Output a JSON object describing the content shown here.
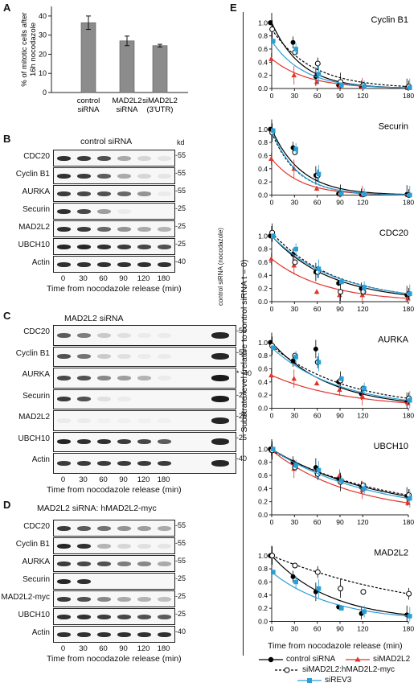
{
  "panels": {
    "A": "A",
    "B": "B",
    "C": "C",
    "D": "D",
    "E": "E"
  },
  "panelA": {
    "ylabel": "% of mitotic cells after 16h nocodazole",
    "yticks": [
      "0",
      "10",
      "20",
      "30",
      "40"
    ],
    "categories": [
      "control siRNA",
      "MAD2L2 siRNA",
      "siMAD2L2 (3'UTR)"
    ],
    "values": [
      36.5,
      27,
      24.5
    ],
    "errors": [
      3.5,
      2.5,
      0.7
    ],
    "ylim": [
      0,
      45
    ],
    "bar_color": "#8c8c8c"
  },
  "panelB": {
    "title": "control siRNA",
    "kd": "kd",
    "rows": [
      {
        "label": "CDC20",
        "kd": "-55",
        "bands": [
          0.9,
          0.85,
          0.75,
          0.35,
          0.15,
          0.08
        ]
      },
      {
        "label": "Cyclin B1",
        "kd": "-55",
        "bands": [
          0.9,
          0.85,
          0.7,
          0.35,
          0.15,
          0.08
        ]
      },
      {
        "label": "AURKA",
        "kd": "-55",
        "bands": [
          0.85,
          0.8,
          0.75,
          0.65,
          0.45,
          0.05
        ]
      },
      {
        "label": "Securin",
        "kd": "-25",
        "bands": [
          0.9,
          0.8,
          0.4,
          0.05,
          0.0,
          0.0
        ]
      },
      {
        "label": "MAD2L2",
        "kd": "-25",
        "bands": [
          0.9,
          0.85,
          0.65,
          0.45,
          0.35,
          0.3
        ]
      },
      {
        "label": "UBCH10",
        "kd": "-25",
        "bands": [
          0.95,
          0.95,
          0.9,
          0.85,
          0.8,
          0.75
        ]
      },
      {
        "label": "Actin",
        "kd": "-40",
        "bands": [
          0.9,
          0.9,
          0.9,
          0.9,
          0.9,
          0.9
        ]
      }
    ],
    "times": [
      "0",
      "30",
      "60",
      "90",
      "120",
      "180"
    ],
    "xlabel": "Time from nocodazole release (min)"
  },
  "panelC": {
    "title": "MAD2L2 siRNA",
    "control_lane": "control siRNA (nocodazole)",
    "rows": [
      {
        "label": "CDC20",
        "kd": "-55",
        "bands": [
          0.7,
          0.55,
          0.2,
          0.1,
          0.05,
          0.05
        ],
        "ctrl": 0.95
      },
      {
        "label": "Cyclin B1",
        "kd": "-55",
        "bands": [
          0.75,
          0.6,
          0.2,
          0.1,
          0.05,
          0.05
        ],
        "ctrl": 0.95
      },
      {
        "label": "AURKA",
        "kd": "*\n-40",
        "bands": [
          0.8,
          0.75,
          0.5,
          0.4,
          0.3,
          0.05
        ],
        "ctrl": 1.0
      },
      {
        "label": "Securin",
        "kd": "-25",
        "bands": [
          0.85,
          0.75,
          0.1,
          0.05,
          0.0,
          0.0
        ],
        "ctrl": 1.0
      },
      {
        "label": "MAD2L2",
        "kd": "-25",
        "bands": [
          0.05,
          0.05,
          0.03,
          0.03,
          0.03,
          0.03
        ],
        "ctrl": 0.95
      },
      {
        "label": "UBCH10",
        "kd": "-25",
        "bands": [
          0.95,
          0.9,
          0.9,
          0.85,
          0.8,
          0.7
        ],
        "ctrl": 0.95
      },
      {
        "label": "Actin",
        "kd": "-40",
        "bands": [
          0.85,
          0.85,
          0.85,
          0.85,
          0.85,
          0.85
        ],
        "ctrl": 0.95
      }
    ],
    "times": [
      "0",
      "30",
      "60",
      "90",
      "120",
      "180"
    ],
    "xlabel": "Time from nocodazole release (min)"
  },
  "panelD": {
    "title": "MAD2L2 siRNA: hMAD2L2-myc",
    "rows": [
      {
        "label": "CDC20",
        "kd": "-55",
        "bands": [
          0.85,
          0.7,
          0.6,
          0.45,
          0.4,
          0.35
        ]
      },
      {
        "label": "Cyclin B1",
        "kd": "-55",
        "bands": [
          0.95,
          0.9,
          0.3,
          0.15,
          0.1,
          0.08
        ]
      },
      {
        "label": "AURKA",
        "kd": "-55",
        "bands": [
          0.85,
          0.8,
          0.75,
          0.55,
          0.5,
          0.35
        ]
      },
      {
        "label": "Securin",
        "kd": "-25",
        "bands": [
          0.95,
          0.9,
          0.0,
          0.0,
          0.0,
          0.0
        ]
      },
      {
        "label": "MAD2L2-myc",
        "kd": "-25",
        "bands": [
          0.85,
          0.75,
          0.5,
          0.35,
          0.3,
          0.25
        ]
      },
      {
        "label": "UBCH10",
        "kd": "-25",
        "bands": [
          0.9,
          0.9,
          0.85,
          0.8,
          0.75,
          0.7
        ]
      },
      {
        "label": "Actin",
        "kd": "-40",
        "bands": [
          0.9,
          0.9,
          0.9,
          0.9,
          0.9,
          0.9
        ]
      }
    ],
    "times": [
      "0",
      "30",
      "60",
      "90",
      "120",
      "180"
    ],
    "xlabel": "Time from nocodazole release (min)"
  },
  "panelE": {
    "ylabel": "Substrate level (relative to control siRNA t = 0)",
    "xlabel": "Time from nocodazole release (min)",
    "xticks": [
      "0",
      "30",
      "60",
      "90",
      "120",
      "180"
    ],
    "xtick_values": [
      0,
      30,
      60,
      90,
      120,
      180
    ],
    "legend": {
      "control": "control siRNA",
      "simad2l2": "siMAD2L2",
      "rescue": "siMAD2L2:hMAD2L2-myc",
      "sirev3": "siREV3"
    },
    "colors": {
      "control": "#000000",
      "simad2l2": "#e0352b",
      "rescue": "#000000",
      "sirev3": "#2a9fd6"
    }
  },
  "chart_data": [
    {
      "type": "bar",
      "title": "",
      "categories": [
        "control siRNA",
        "MAD2L2 siRNA",
        "siMAD2L2 (3'UTR)"
      ],
      "values": [
        36.5,
        27,
        24.5
      ],
      "ylabel": "% of mitotic cells after 16h nocodazole",
      "ylim": [
        0,
        45
      ]
    },
    {
      "type": "scatter",
      "title": "Cyclin B1",
      "yticks": [
        "0.0",
        "0.2",
        "0.4",
        "0.6",
        "0.8",
        "1.0"
      ],
      "ylim": [
        0,
        1.15
      ],
      "x": [
        0,
        30,
        60,
        90,
        120,
        180
      ],
      "series": [
        {
          "name": "control siRNA",
          "values": [
            1.0,
            0.7,
            0.18,
            0.05,
            0.03,
            0.01
          ]
        },
        {
          "name": "siMAD2L2",
          "values": [
            0.45,
            0.2,
            0.1,
            0.03,
            0.02,
            0.01
          ]
        },
        {
          "name": "siMAD2L2:hMAD2L2-myc",
          "values": [
            0.9,
            0.55,
            0.38,
            0.1,
            0.05,
            0.03
          ]
        },
        {
          "name": "siREV3",
          "values": [
            0.72,
            0.6,
            0.22,
            0.05,
            0.03,
            0.01
          ]
        }
      ]
    },
    {
      "type": "scatter",
      "title": "Securin",
      "yticks": [
        "0.0",
        "0.2",
        "0.4",
        "0.6",
        "0.8",
        "1.0"
      ],
      "ylim": [
        0,
        1.15
      ],
      "x": [
        0,
        30,
        60,
        90,
        120,
        180
      ],
      "series": [
        {
          "name": "control siRNA",
          "values": [
            1.0,
            0.72,
            0.3,
            0.02,
            0.01,
            0.01
          ]
        },
        {
          "name": "siMAD2L2",
          "values": [
            0.55,
            0.4,
            0.1,
            0.01,
            0.0,
            0.0
          ]
        },
        {
          "name": "siMAD2L2:hMAD2L2-myc",
          "values": [
            0.95,
            0.65,
            0.3,
            0.02,
            0.01,
            0.0
          ]
        },
        {
          "name": "siREV3",
          "values": [
            0.98,
            0.7,
            0.32,
            0.02,
            0.01,
            0.0
          ]
        }
      ]
    },
    {
      "type": "scatter",
      "title": "CDC20",
      "yticks": [
        "0.0",
        "0.2",
        "0.4",
        "0.6",
        "0.8",
        "1.0"
      ],
      "ylim": [
        0,
        1.15
      ],
      "x": [
        0,
        30,
        60,
        90,
        120,
        180
      ],
      "series": [
        {
          "name": "control siRNA",
          "values": [
            1.0,
            0.72,
            0.45,
            0.28,
            0.2,
            0.1
          ]
        },
        {
          "name": "siMAD2L2",
          "values": [
            0.65,
            0.55,
            0.15,
            0.1,
            0.1,
            0.05
          ]
        },
        {
          "name": "siMAD2L2:hMAD2L2-myc",
          "values": [
            1.05,
            0.6,
            0.45,
            0.15,
            0.15,
            0.12
          ]
        },
        {
          "name": "siREV3",
          "values": [
            1.0,
            0.8,
            0.5,
            0.3,
            0.22,
            0.12
          ]
        }
      ]
    },
    {
      "type": "scatter",
      "title": "AURKA",
      "yticks": [
        "0.0",
        "0.2",
        "0.4",
        "0.6",
        "0.8",
        "1.0"
      ],
      "ylim": [
        0,
        1.15
      ],
      "x": [
        0,
        30,
        60,
        90,
        120,
        180
      ],
      "series": [
        {
          "name": "control siRNA",
          "values": [
            1.0,
            0.72,
            0.9,
            0.4,
            0.22,
            0.1
          ]
        },
        {
          "name": "siMAD2L2",
          "values": [
            0.5,
            0.45,
            0.38,
            0.28,
            0.18,
            0.08
          ]
        },
        {
          "name": "siMAD2L2:hMAD2L2-myc",
          "values": [
            0.95,
            0.8,
            0.7,
            0.42,
            0.3,
            0.15
          ]
        },
        {
          "name": "siREV3",
          "values": [
            0.92,
            0.78,
            0.7,
            0.45,
            0.3,
            0.12
          ]
        }
      ]
    },
    {
      "type": "scatter",
      "title": "UBCH10",
      "yticks": [
        "0.0",
        "0.2",
        "0.4",
        "0.6",
        "0.8",
        "1.0"
      ],
      "ylim": [
        0,
        1.15
      ],
      "x": [
        0,
        30,
        60,
        90,
        120,
        180
      ],
      "series": [
        {
          "name": "control siRNA",
          "values": [
            1.0,
            0.8,
            0.72,
            0.55,
            0.42,
            0.28
          ]
        },
        {
          "name": "siMAD2L2",
          "values": [
            0.98,
            0.7,
            0.65,
            0.6,
            0.38,
            0.18
          ]
        },
        {
          "name": "siMAD2L2:hMAD2L2-myc",
          "values": [
            0.98,
            0.72,
            0.62,
            0.5,
            0.45,
            0.3
          ]
        },
        {
          "name": "siREV3",
          "values": [
            1.0,
            0.75,
            0.68,
            0.52,
            0.4,
            0.25
          ]
        }
      ]
    },
    {
      "type": "scatter",
      "title": "MAD2L2",
      "yticks": [
        "0.0",
        "0.2",
        "0.4",
        "0.6",
        "0.8",
        "1.0"
      ],
      "ylim": [
        0,
        1.15
      ],
      "x": [
        0,
        30,
        60,
        90,
        120,
        180
      ],
      "series": [
        {
          "name": "control siRNA",
          "values": [
            1.0,
            0.68,
            0.45,
            0.22,
            0.12,
            0.1
          ]
        },
        {
          "name": "siMAD2L2",
          "values": [
            0.0,
            0.0,
            0.0,
            0.0,
            0.0,
            0.0
          ]
        },
        {
          "name": "siMAD2L2:hMAD2L2-myc",
          "values": [
            1.0,
            0.85,
            0.75,
            0.5,
            0.45,
            0.42
          ]
        },
        {
          "name": "siREV3",
          "values": [
            0.75,
            0.6,
            0.5,
            0.2,
            0.15,
            0.08
          ]
        }
      ]
    }
  ]
}
